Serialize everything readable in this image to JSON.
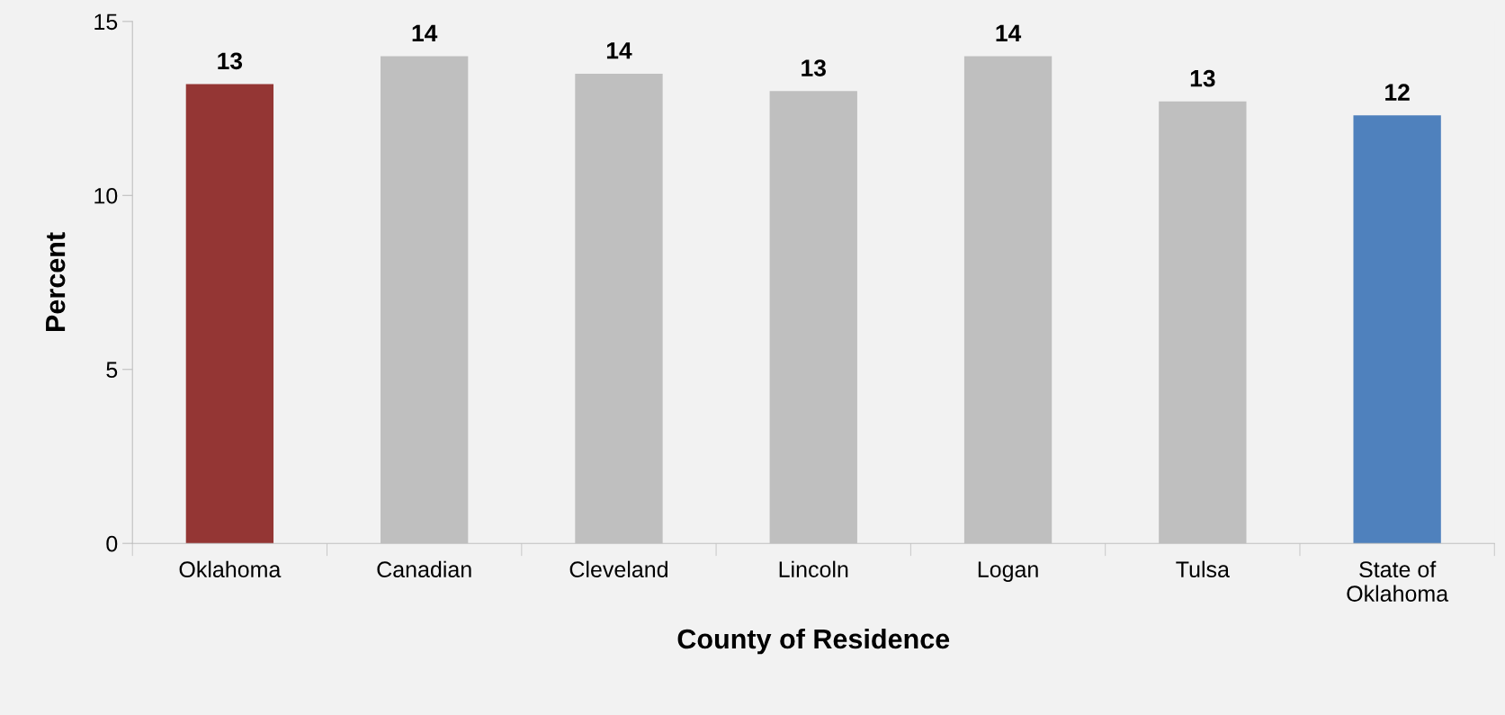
{
  "chart_data": {
    "type": "bar",
    "xlabel": "County of Residence",
    "ylabel": "Percent",
    "categories": [
      "Oklahoma",
      "Canadian",
      "Cleveland",
      "Lincoln",
      "Logan",
      "Tulsa",
      "State of\nOklahoma"
    ],
    "values": [
      13.2,
      14.0,
      13.5,
      13.0,
      14.0,
      12.7,
      12.3
    ],
    "colors": [
      "#943634",
      "#bfbfbf",
      "#bfbfbf",
      "#bfbfbf",
      "#bfbfbf",
      "#bfbfbf",
      "#4f81bd"
    ],
    "value_labels": [
      "13",
      "14",
      "14",
      "13",
      "14",
      "13",
      "12"
    ],
    "ylim": [
      0,
      15
    ],
    "yticks": [
      0,
      5,
      10,
      15
    ],
    "grid": false,
    "legend": false
  }
}
